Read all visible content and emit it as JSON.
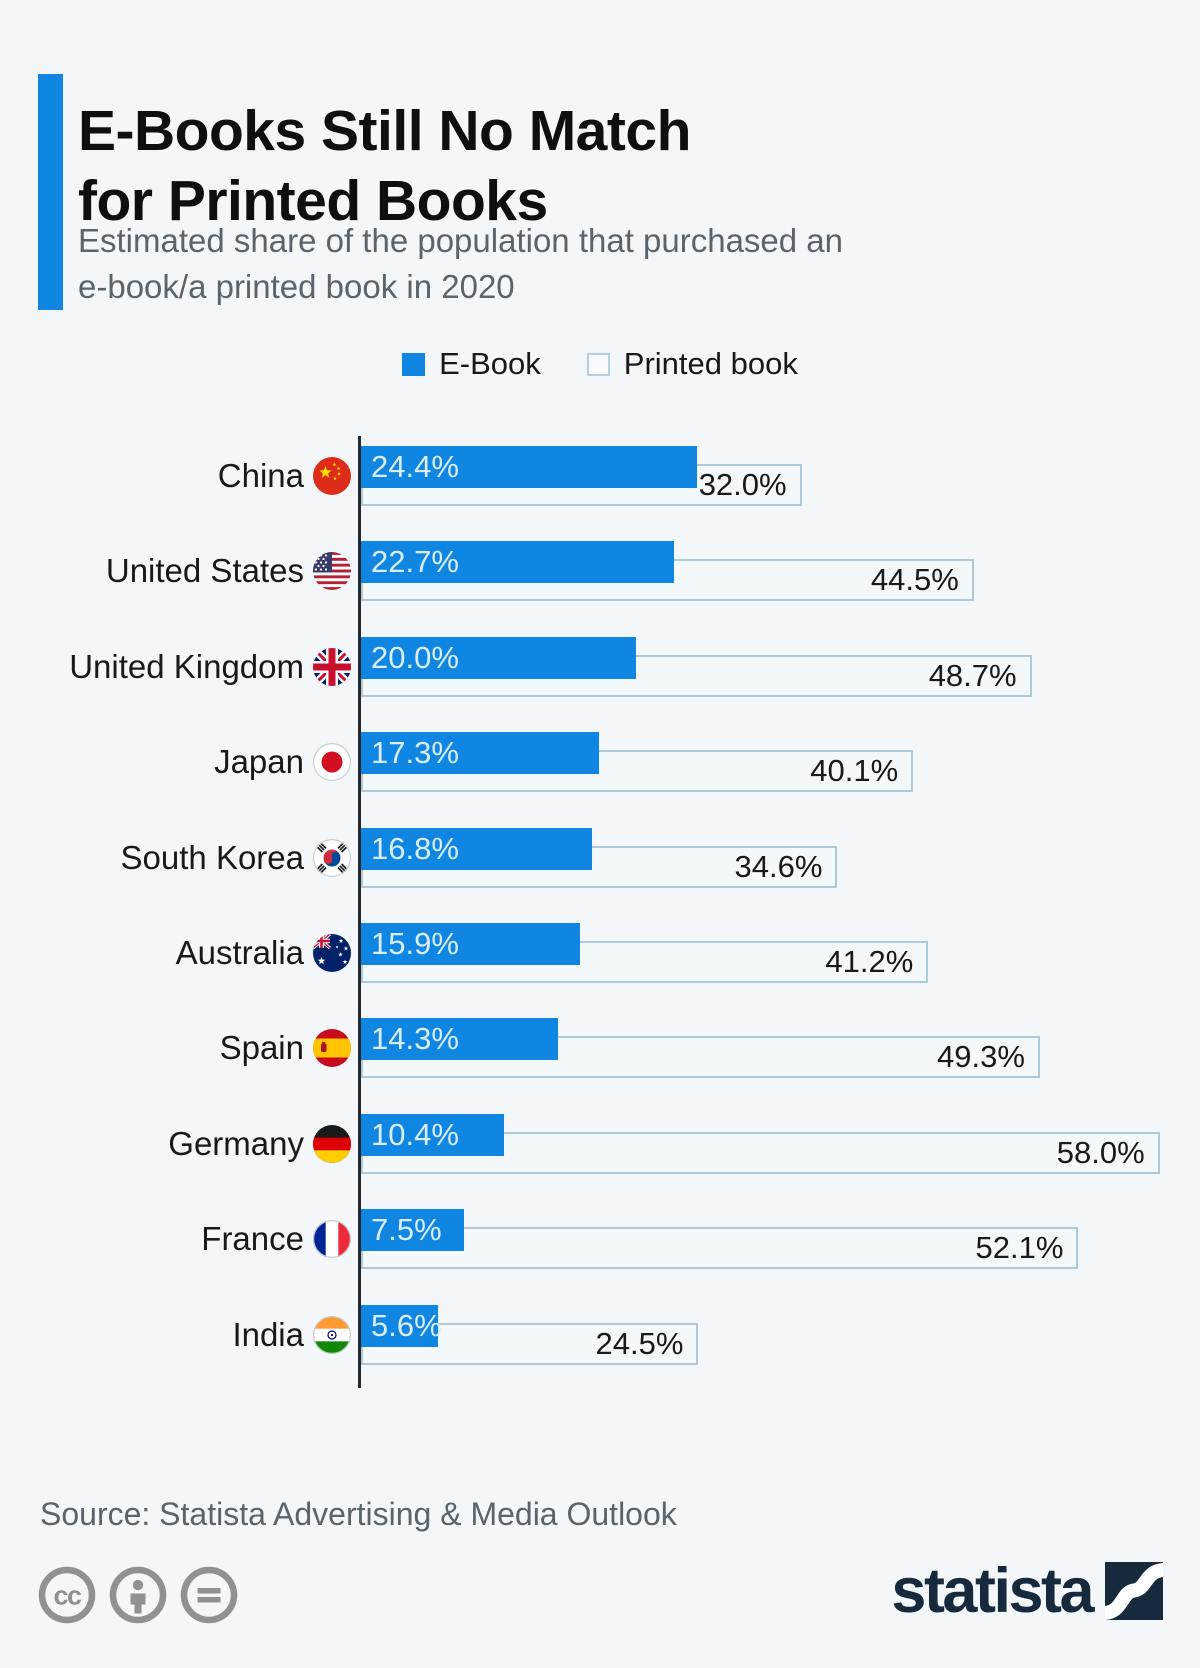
{
  "header": {
    "title": "E-Books Still No Match\nfor Printed Books",
    "subtitle": "Estimated share of the population that purchased an\ne-book/a printed book in 2020"
  },
  "legend": {
    "ebook_label": "E-Book",
    "printed_label": "Printed book"
  },
  "chart_data": {
    "type": "bar",
    "orientation": "horizontal",
    "title": "E-Books Still No Match for Printed Books",
    "unit": "%",
    "xlim": [
      0,
      60
    ],
    "grid": false,
    "legend_position": "top-center",
    "categories": [
      "China",
      "United States",
      "United Kingdom",
      "Japan",
      "South Korea",
      "Australia",
      "Spain",
      "Germany",
      "France",
      "India"
    ],
    "flags": [
      "china",
      "united-states",
      "united-kingdom",
      "japan",
      "south-korea",
      "australia",
      "spain",
      "germany",
      "france",
      "india"
    ],
    "series": [
      {
        "name": "E-Book",
        "color": "#0f86e1",
        "label_color": "#d9edfc",
        "values": [
          24.4,
          22.7,
          20.0,
          17.3,
          16.8,
          15.9,
          14.3,
          10.4,
          7.5,
          5.6
        ]
      },
      {
        "name": "Printed book",
        "fill": "#f3f8fb",
        "border_color": "#adc9da",
        "label_color": "#17191b",
        "values": [
          32.0,
          44.5,
          48.7,
          40.1,
          34.6,
          41.2,
          49.3,
          58.0,
          52.1,
          24.5
        ]
      }
    ]
  },
  "footer": {
    "source": "Source: Statista Advertising & Media Outlook",
    "brand": "statista",
    "license_icons": [
      "cc-icon",
      "attribution-icon",
      "no-derivatives-icon"
    ]
  },
  "colors": {
    "background": "#f3f7fa",
    "accent_blue": "#0f86e1",
    "title_text": "#0d0f11",
    "subtitle_text": "#5a646d",
    "axis": "#26282b",
    "brand_navy": "#17293d",
    "license_gray": "#8d9297"
  }
}
